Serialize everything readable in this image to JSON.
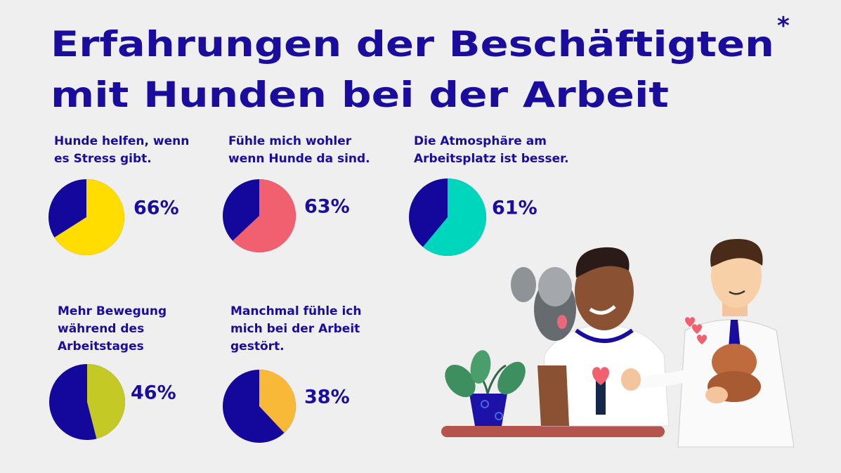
{
  "title": {
    "lines": [
      "Erfahrungen der Beschäftigten",
      "mit Hunden bei der Arbeit"
    ],
    "mark": "*"
  },
  "chart_data": [
    {
      "type": "pie",
      "title": [
        "Hunde helfen, wenn",
        "es Stress gibt."
      ],
      "values": [
        66
      ],
      "value_labels": [
        "66%"
      ],
      "color": "#ffdd00",
      "rest_color": "#14089c"
    },
    {
      "type": "pie",
      "title": [
        "Fühle mich wohler",
        "wenn Hunde da sind."
      ],
      "values": [
        63
      ],
      "value_labels": [
        "63%"
      ],
      "color": "#f0606e",
      "rest_color": "#14089c"
    },
    {
      "type": "pie",
      "title": [
        "Die Atmosphäre am",
        "Arbeitsplatz ist besser."
      ],
      "values": [
        61
      ],
      "value_labels": [
        "61%"
      ],
      "color": "#00d6bb",
      "rest_color": "#14089c"
    },
    {
      "type": "pie",
      "title": [
        "Mehr Bewegung",
        "während des",
        "Arbeitstages"
      ],
      "values": [
        46
      ],
      "value_labels": [
        "46%"
      ],
      "color": "#c5c926",
      "rest_color": "#14089c"
    },
    {
      "type": "pie",
      "title": [
        "Manchmal fühle ich",
        "mich bei der Arbeit",
        "gestört."
      ],
      "values": [
        38
      ],
      "value_labels": [
        "38%"
      ],
      "color": "#f7b937",
      "rest_color": "#14089c"
    }
  ]
}
